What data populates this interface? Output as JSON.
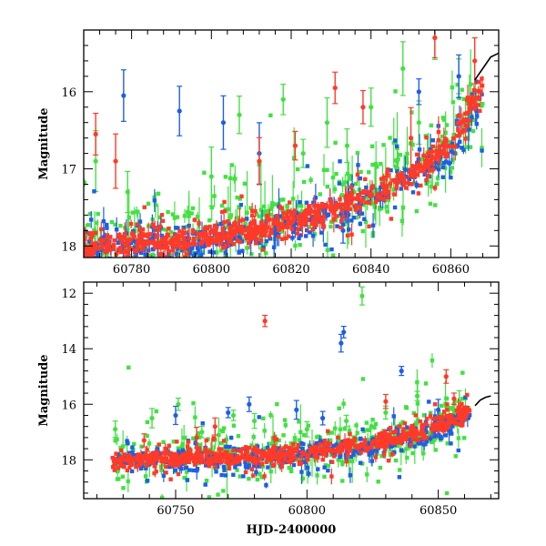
{
  "chart_data": [
    {
      "type": "scatter",
      "xlabel": "",
      "ylabel": "Magnitude",
      "xlim": [
        60768,
        60872
      ],
      "ylim": [
        18.15,
        15.2
      ],
      "y_inverted": true,
      "x_ticks": [
        60780,
        60800,
        60820,
        60840,
        60860
      ],
      "y_ticks": [
        16,
        17,
        18
      ],
      "colors": {
        "red": "#ff3a28",
        "blue": "#1e5ee6",
        "green": "#43e043",
        "line": "#000000"
      },
      "series": [
        {
          "color": "green",
          "trend": [
            [
              60768,
              17.95
            ],
            [
              60790,
              17.85
            ],
            [
              60810,
              17.7
            ],
            [
              60830,
              17.5
            ],
            [
              60845,
              17.2
            ],
            [
              60860,
              16.7
            ],
            [
              60868,
              16.0
            ]
          ],
          "scatter": 0.35,
          "outliers": [
            [
              60771,
              16.9
            ],
            [
              60779,
              17.3
            ],
            [
              60800,
              17.1
            ],
            [
              60807,
              16.3
            ],
            [
              60818,
              16.1
            ],
            [
              60823,
              16.8
            ],
            [
              60829,
              16.4
            ],
            [
              60834,
              16.7
            ],
            [
              60840,
              16.2
            ],
            [
              60848,
              15.7
            ],
            [
              60852,
              16.4
            ],
            [
              60856,
              15.3
            ],
            [
              60862,
              15.8
            ]
          ]
        },
        {
          "color": "blue",
          "trend": [
            [
              60768,
              18.05
            ],
            [
              60790,
              17.95
            ],
            [
              60810,
              17.85
            ],
            [
              60830,
              17.6
            ],
            [
              60845,
              17.3
            ],
            [
              60860,
              16.8
            ],
            [
              60868,
              16.1
            ]
          ],
          "scatter": 0.18,
          "outliers": [
            [
              60778,
              16.05
            ],
            [
              60792,
              16.25
            ],
            [
              60803,
              16.4
            ],
            [
              60812,
              16.8
            ],
            [
              60833,
              17.8
            ],
            [
              60852,
              16.0
            ],
            [
              60862,
              15.8
            ]
          ]
        },
        {
          "color": "red",
          "trend": [
            [
              60768,
              18.02
            ],
            [
              60790,
              17.92
            ],
            [
              60810,
              17.8
            ],
            [
              60830,
              17.55
            ],
            [
              60845,
              17.25
            ],
            [
              60860,
              16.7
            ],
            [
              60868,
              15.9
            ]
          ],
          "scatter": 0.12,
          "outliers": [
            [
              60771,
              16.55
            ],
            [
              60776,
              16.9
            ],
            [
              60812,
              16.9
            ],
            [
              60821,
              16.7
            ],
            [
              60831,
              15.95
            ],
            [
              60838,
              16.2
            ],
            [
              60850,
              16.6
            ],
            [
              60856,
              15.3
            ],
            [
              60866,
              15.6
            ]
          ]
        }
      ],
      "model_curve": [
        [
          60866,
          15.85
        ],
        [
          60868,
          15.7
        ],
        [
          60870,
          15.55
        ],
        [
          60872,
          15.5
        ]
      ]
    },
    {
      "type": "scatter",
      "xlabel": "HJD-2400000",
      "ylabel": "Magnitude",
      "xlim": [
        60715,
        60873
      ],
      "ylim": [
        19.4,
        11.6
      ],
      "y_inverted": true,
      "x_ticks": [
        60750,
        60800,
        60850
      ],
      "y_ticks": [
        12,
        14,
        16,
        18
      ],
      "colors": {
        "red": "#ff3a28",
        "blue": "#1e5ee6",
        "green": "#43e043",
        "line": "#000000"
      },
      "series": [
        {
          "color": "green",
          "trend": [
            [
              60726,
              17.95
            ],
            [
              60760,
              17.9
            ],
            [
              60790,
              17.75
            ],
            [
              60820,
              17.5
            ],
            [
              60845,
              17.0
            ],
            [
              60862,
              16.3
            ]
          ],
          "scatter": 0.6,
          "outliers": [
            [
              60727,
              16.9
            ],
            [
              60741,
              16.5
            ],
            [
              60751,
              16.0
            ],
            [
              60760,
              17.0
            ],
            [
              60772,
              16.4
            ],
            [
              60780,
              16.6
            ],
            [
              60800,
              16.9
            ],
            [
              60815,
              16.6
            ],
            [
              60821,
              12.1
            ],
            [
              60830,
              16.3
            ],
            [
              60842,
              15.7
            ],
            [
              60858,
              15.9
            ]
          ]
        },
        {
          "color": "blue",
          "trend": [
            [
              60726,
              18.05
            ],
            [
              60760,
              18.0
            ],
            [
              60790,
              17.85
            ],
            [
              60820,
              17.6
            ],
            [
              60845,
              17.1
            ],
            [
              60862,
              16.4
            ]
          ],
          "scatter": 0.3,
          "outliers": [
            [
              60750,
              16.4
            ],
            [
              60770,
              16.3
            ],
            [
              60778,
              16.0
            ],
            [
              60796,
              16.2
            ],
            [
              60806,
              16.5
            ],
            [
              60813,
              13.8
            ],
            [
              60814,
              13.4
            ],
            [
              60836,
              14.8
            ],
            [
              60850,
              16.2
            ]
          ]
        },
        {
          "color": "red",
          "trend": [
            [
              60726,
              18.0
            ],
            [
              60760,
              17.95
            ],
            [
              60790,
              17.8
            ],
            [
              60820,
              17.5
            ],
            [
              60845,
              17.0
            ],
            [
              60862,
              16.2
            ]
          ],
          "scatter": 0.22,
          "outliers": [
            [
              60738,
              17.3
            ],
            [
              60758,
              17.2
            ],
            [
              60765,
              16.8
            ],
            [
              60784,
              13.0
            ],
            [
              60830,
              15.9
            ],
            [
              60853,
              15.0
            ],
            [
              60856,
              15.8
            ]
          ]
        }
      ],
      "model_curve": [
        [
          60864,
          16.05
        ],
        [
          60866,
          15.85
        ],
        [
          60868,
          15.75
        ],
        [
          60870,
          15.7
        ]
      ]
    }
  ]
}
